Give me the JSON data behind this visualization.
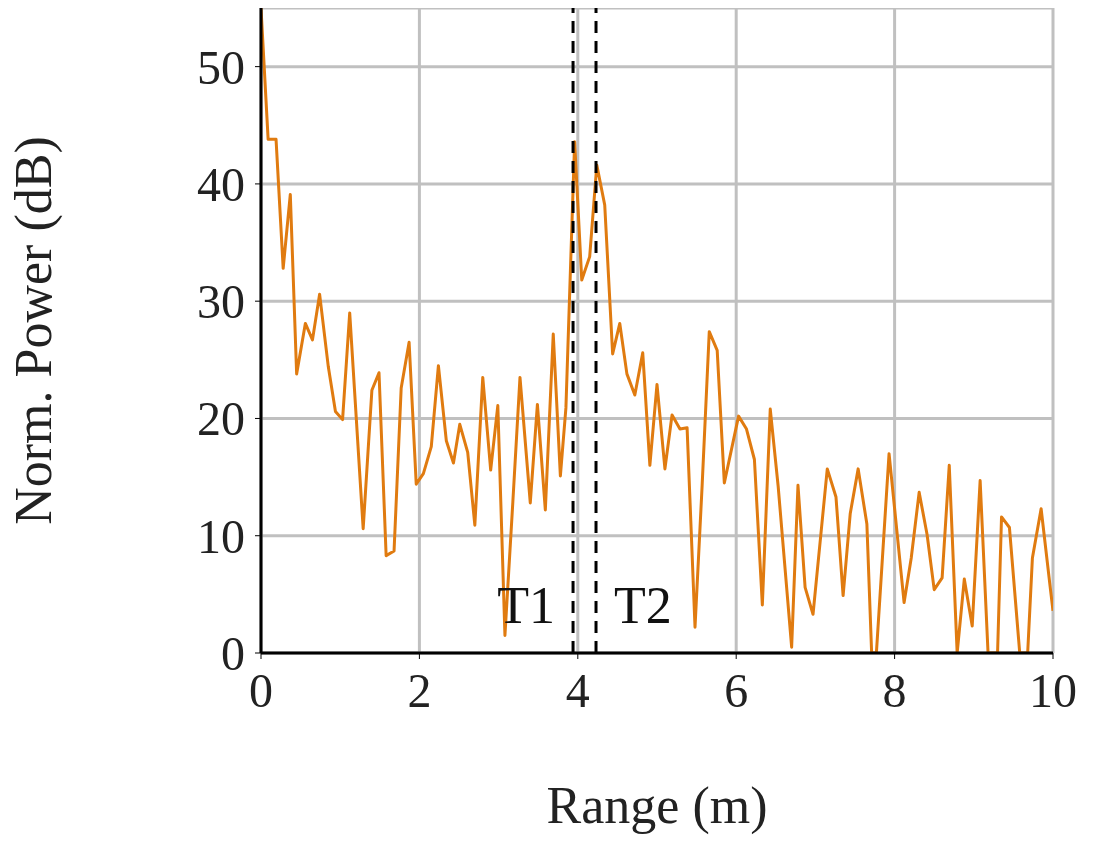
{
  "chart_data": {
    "type": "line",
    "xlabel": "Range (m)",
    "ylabel": "Norm. Power (dB)",
    "xlim": [
      0,
      10
    ],
    "xticks": [
      0,
      2,
      4,
      6,
      8,
      10
    ],
    "ylim": [
      0,
      55
    ],
    "yticks": [
      0,
      10,
      20,
      30,
      40,
      50
    ],
    "grid": true,
    "marker": "none",
    "line_style": "solid",
    "x": [
      0,
      0.09,
      0.19,
      0.28,
      0.37,
      0.45,
      0.56,
      0.65,
      0.74,
      0.85,
      0.94,
      1.03,
      1.12,
      1.29,
      1.4,
      1.49,
      1.58,
      1.68,
      1.77,
      1.87,
      1.96,
      2.05,
      2.15,
      2.24,
      2.34,
      2.43,
      2.51,
      2.61,
      2.7,
      2.8,
      2.9,
      2.99,
      3.08,
      3.18,
      3.27,
      3.4,
      3.49,
      3.59,
      3.69,
      3.78,
      3.85,
      3.96,
      4.05,
      4.15,
      4.24,
      4.34,
      4.44,
      4.53,
      4.62,
      4.72,
      4.82,
      4.91,
      5.0,
      5.1,
      5.19,
      5.29,
      5.38,
      5.48,
      5.57,
      5.66,
      5.76,
      5.85,
      6.03,
      6.13,
      6.23,
      6.33,
      6.43,
      6.53,
      6.7,
      6.78,
      6.87,
      6.97,
      7.15,
      7.26,
      7.35,
      7.44,
      7.54,
      7.65,
      7.71,
      7.77,
      7.93,
      8.12,
      8.21,
      8.31,
      8.41,
      8.5,
      8.6,
      8.69,
      8.79,
      8.88,
      8.98,
      9.08,
      9.18,
      9.3,
      9.35,
      9.45,
      9.58,
      9.68,
      9.74,
      9.85,
      9.97,
      10.0
    ],
    "series": [
      {
        "color": "#e07b10",
        "values": [
          55,
          43.8,
          43.8,
          32.8,
          39.1,
          23.8,
          28.1,
          26.7,
          30.6,
          24.4,
          20.6,
          19.9,
          29.0,
          10.6,
          22.4,
          23.9,
          8.3,
          8.7,
          22.6,
          26.5,
          14.4,
          15.3,
          17.6,
          24.5,
          18.1,
          16.2,
          19.5,
          17.1,
          10.9,
          23.5,
          15.6,
          21.1,
          1.5,
          12.9,
          23.5,
          12.8,
          21.2,
          12.2,
          27.2,
          15.1,
          20.9,
          43.6,
          31.8,
          33.8,
          41.6,
          38.2,
          25.5,
          28.1,
          23.8,
          22.0,
          25.6,
          16.0,
          22.9,
          15.7,
          20.3,
          19.1,
          19.2,
          2.2,
          14.3,
          27.4,
          25.8,
          14.5,
          20.2,
          19.1,
          16.5,
          4.1,
          20.8,
          14.2,
          0.5,
          14.3,
          5.6,
          3.3,
          15.7,
          13.3,
          4.9,
          11.9,
          15.7,
          11.0,
          0,
          0,
          17.0,
          4.3,
          8.1,
          13.7,
          10.1,
          5.4,
          6.4,
          16.0,
          0,
          6.3,
          2.3,
          14.7,
          0,
          0,
          11.6,
          10.7,
          0,
          0,
          8.1,
          12.3,
          5.3,
          3.6
        ]
      }
    ],
    "ref_lines": [
      {
        "axis": "x",
        "value": 3.94,
        "label": "T1",
        "color": "#000000",
        "line_style": "dashed"
      },
      {
        "axis": "x",
        "value": 4.23,
        "label": "T2",
        "color": "#000000",
        "line_style": "dashed"
      }
    ]
  }
}
